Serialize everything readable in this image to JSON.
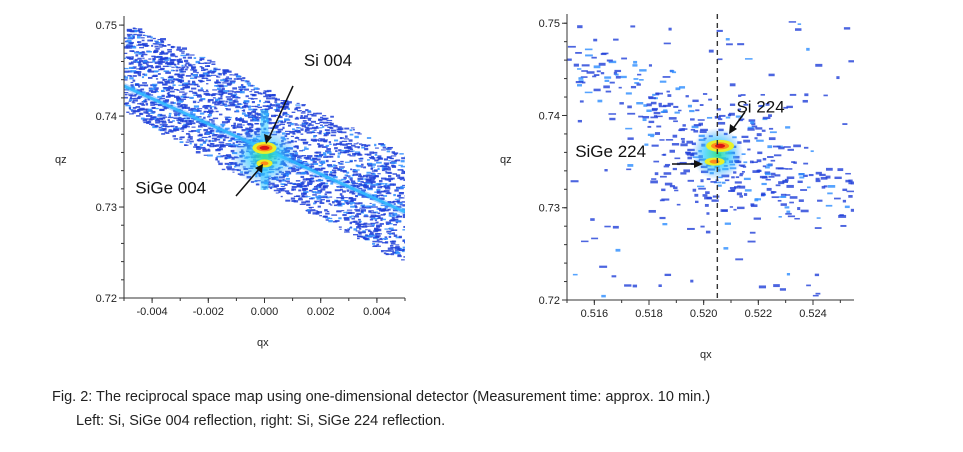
{
  "chart_data": [
    {
      "type": "heatmap",
      "title": "",
      "xlabel": "qx",
      "ylabel": "qz",
      "xlim": [
        -0.005,
        0.005
      ],
      "ylim": [
        0.72,
        0.751
      ],
      "x_ticks": [
        "-0.004",
        "-0.002",
        "0.000",
        "0.002",
        "0.004"
      ],
      "x_tick_values": [
        -0.004,
        -0.002,
        0.0,
        0.002,
        0.004
      ],
      "y_ticks": [
        "0.75",
        "0.74",
        "0.73",
        "0.72"
      ],
      "y_tick_values": [
        0.75,
        0.74,
        0.73,
        0.72
      ],
      "colormap": [
        "#1f3fd8",
        "#2a8cff",
        "#34d0ff",
        "#2de38a",
        "#e8ef2a",
        "#ff8a1a",
        "#d81414"
      ],
      "peaks": [
        {
          "label": "Si 004",
          "qx": 0.0,
          "qz": 0.7365
        },
        {
          "label": "SiGe 004",
          "qx": 0.0,
          "qz": 0.7348
        }
      ],
      "annotations": [
        {
          "text": "Si 004",
          "qx": 0.0014,
          "qz": 0.7455
        },
        {
          "text": "SiGe 004",
          "qx": -0.0046,
          "qz": 0.7315
        }
      ]
    },
    {
      "type": "heatmap",
      "title": "",
      "xlabel": "qx",
      "ylabel": "qz",
      "xlim": [
        0.515,
        0.5255
      ],
      "ylim": [
        0.72,
        0.751
      ],
      "x_ticks": [
        "0.516",
        "0.518",
        "0.520",
        "0.522",
        "0.524"
      ],
      "x_tick_values": [
        0.516,
        0.518,
        0.52,
        0.522,
        0.524
      ],
      "y_ticks": [
        "0.75",
        "0.74",
        "0.73",
        "0.72"
      ],
      "y_tick_values": [
        0.75,
        0.74,
        0.73,
        0.72
      ],
      "reference_line_qx": 0.5205,
      "colormap": [
        "#1f3fd8",
        "#2a8cff",
        "#34d0ff",
        "#2de38a",
        "#e8ef2a",
        "#ff8a1a",
        "#d81414"
      ],
      "peaks": [
        {
          "label": "Si 224",
          "qx": 0.5206,
          "qz": 0.7367
        },
        {
          "label": "SiGe 224",
          "qx": 0.5204,
          "qz": 0.735
        }
      ],
      "annotations": [
        {
          "text": "Si 224",
          "qx": 0.5212,
          "qz": 0.7403
        },
        {
          "text": "SiGe 224",
          "qx": 0.5153,
          "qz": 0.7355
        }
      ]
    }
  ],
  "caption": {
    "line1": "Fig. 2: The reciprocal space map using one-dimensional detector (Measurement time: approx. 10 min.)",
    "line2": "Left: Si, SiGe 004 reflection, right: Si, SiGe 224 reflection."
  }
}
